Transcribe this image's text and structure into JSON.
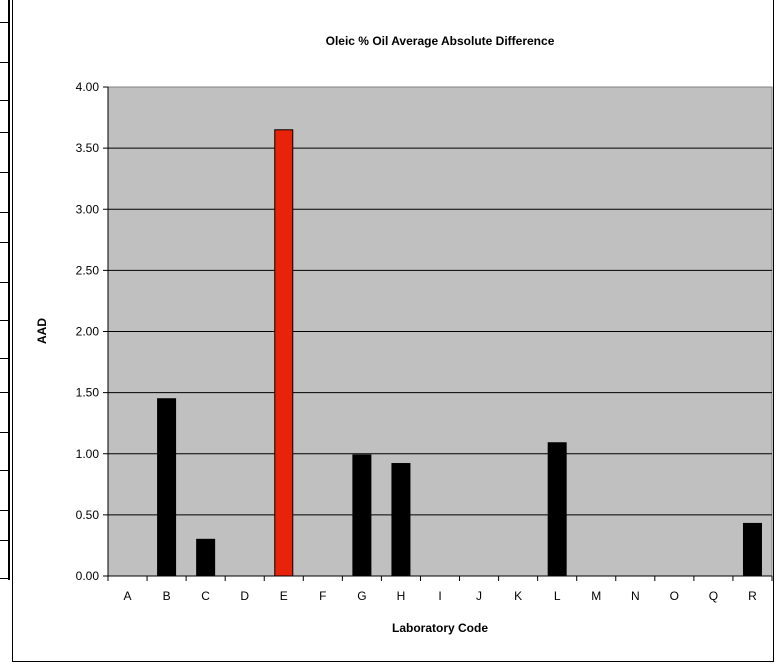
{
  "chart_data": {
    "type": "bar",
    "title": "Oleic % Oil Average Absolute Difference",
    "xlabel": "Laboratory Code",
    "ylabel": "AAD",
    "categories": [
      "A",
      "B",
      "C",
      "D",
      "E",
      "F",
      "G",
      "H",
      "I",
      "J",
      "K",
      "L",
      "M",
      "N",
      "O",
      "Q",
      "R"
    ],
    "values": [
      0,
      1.45,
      0.3,
      0,
      3.65,
      0,
      0.99,
      0.92,
      0,
      0,
      0,
      1.09,
      0,
      0,
      0,
      0,
      0.43
    ],
    "y_ticks": [
      "0.00",
      "0.50",
      "1.00",
      "1.50",
      "2.00",
      "2.50",
      "3.00",
      "3.50",
      "4.00"
    ],
    "ylim": [
      0,
      4
    ],
    "grid": true,
    "highlight_category": "E",
    "colors": {
      "bar": "#000000",
      "highlight": "#e8230a",
      "plot_bg": "#c0c0c0"
    }
  }
}
